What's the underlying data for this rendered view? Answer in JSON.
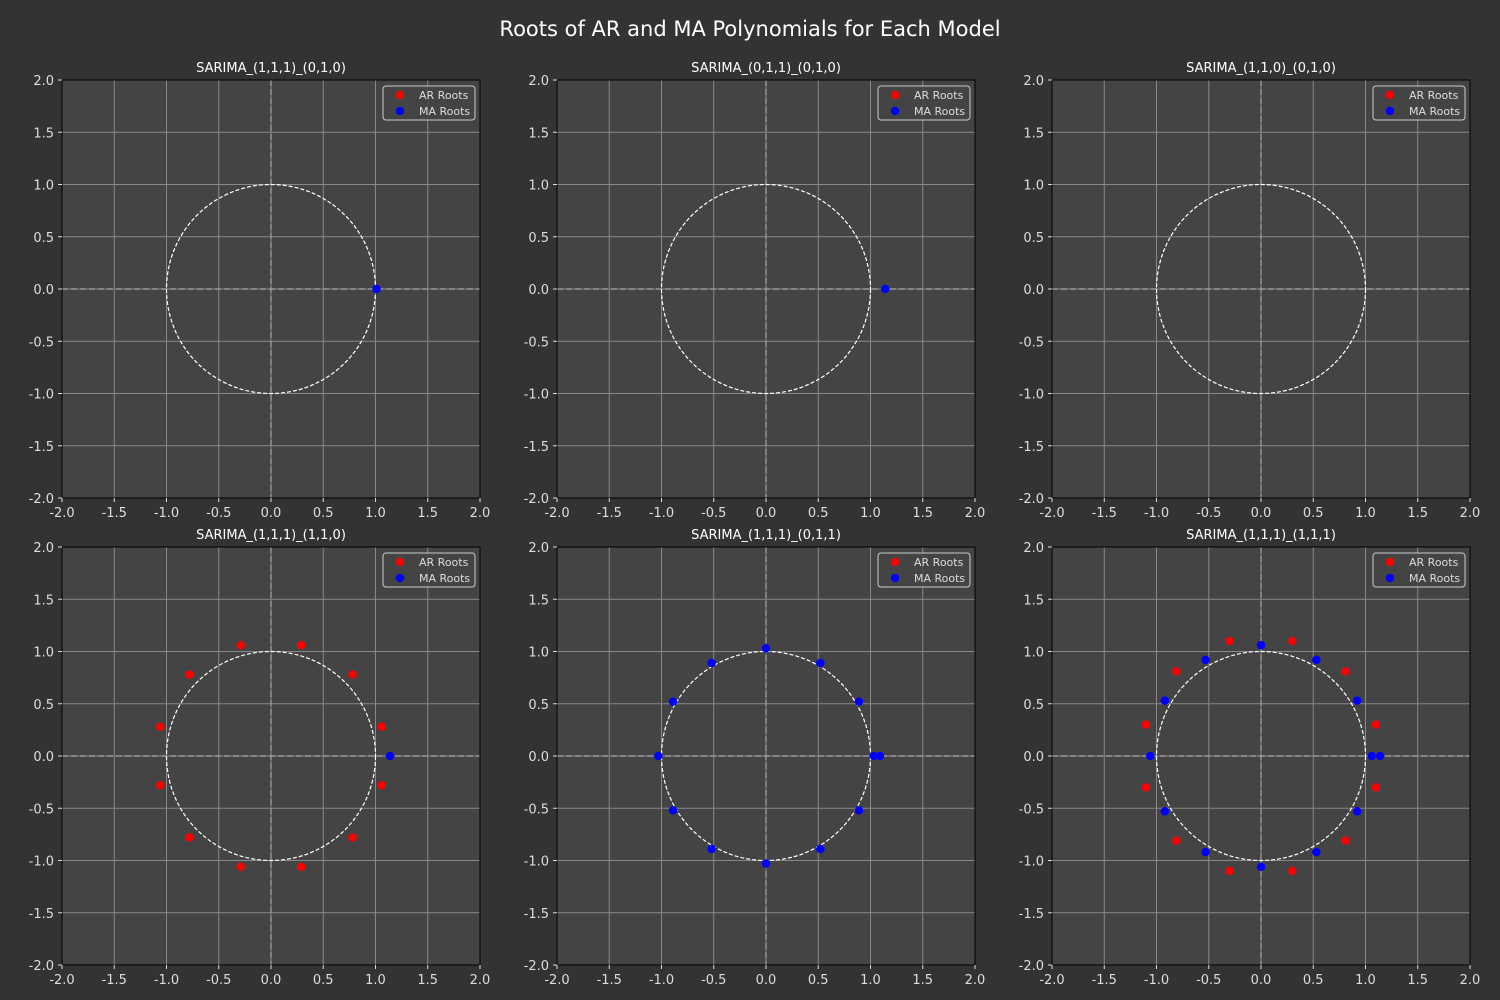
{
  "figure": {
    "title": "Roots of AR and MA Polynomials for Each Model",
    "background": "#333333",
    "axes_facecolor": "#444444",
    "grid_color": "#888888",
    "text_color": "#ffffff",
    "tick_color": "#dddddd",
    "circle_color": "#ffffff",
    "ar_color": "#ff0000",
    "ma_color": "#0000ff"
  },
  "chart_data": [
    {
      "type": "scatter",
      "title": "SARIMA_(1,1,1)_(0,1,0)",
      "xlim": [
        -2,
        2
      ],
      "ylim": [
        -2,
        2
      ],
      "xticks": [
        -2.0,
        -1.5,
        -1.0,
        -0.5,
        0.0,
        0.5,
        1.0,
        1.5,
        2.0
      ],
      "yticks": [
        -2.0,
        -1.5,
        -1.0,
        -0.5,
        0.0,
        0.5,
        1.0,
        1.5,
        2.0
      ],
      "grid": true,
      "unit_circle": true,
      "legend_position": "top-right",
      "series": [
        {
          "name": "AR Roots",
          "color": "#ff0000",
          "points": []
        },
        {
          "name": "MA Roots",
          "color": "#0000ff",
          "points": [
            [
              1.01,
              0.0
            ]
          ]
        }
      ]
    },
    {
      "type": "scatter",
      "title": "SARIMA_(0,1,1)_(0,1,0)",
      "xlim": [
        -2,
        2
      ],
      "ylim": [
        -2,
        2
      ],
      "xticks": [
        -2.0,
        -1.5,
        -1.0,
        -0.5,
        0.0,
        0.5,
        1.0,
        1.5,
        2.0
      ],
      "yticks": [
        -2.0,
        -1.5,
        -1.0,
        -0.5,
        0.0,
        0.5,
        1.0,
        1.5,
        2.0
      ],
      "grid": true,
      "unit_circle": true,
      "legend_position": "top-right",
      "series": [
        {
          "name": "AR Roots",
          "color": "#ff0000",
          "points": []
        },
        {
          "name": "MA Roots",
          "color": "#0000ff",
          "points": [
            [
              1.14,
              0.0
            ]
          ]
        }
      ]
    },
    {
      "type": "scatter",
      "title": "SARIMA_(1,1,0)_(0,1,0)",
      "xlim": [
        -2,
        2
      ],
      "ylim": [
        -2,
        2
      ],
      "xticks": [
        -2.0,
        -1.5,
        -1.0,
        -0.5,
        0.0,
        0.5,
        1.0,
        1.5,
        2.0
      ],
      "yticks": [
        -2.0,
        -1.5,
        -1.0,
        -0.5,
        0.0,
        0.5,
        1.0,
        1.5,
        2.0
      ],
      "grid": true,
      "unit_circle": true,
      "legend_position": "top-right",
      "series": [
        {
          "name": "AR Roots",
          "color": "#ff0000",
          "points": []
        },
        {
          "name": "MA Roots",
          "color": "#0000ff",
          "points": []
        }
      ]
    },
    {
      "type": "scatter",
      "title": "SARIMA_(1,1,1)_(1,1,0)",
      "xlim": [
        -2,
        2
      ],
      "ylim": [
        -2,
        2
      ],
      "xticks": [
        -2.0,
        -1.5,
        -1.0,
        -0.5,
        0.0,
        0.5,
        1.0,
        1.5,
        2.0
      ],
      "yticks": [
        -2.0,
        -1.5,
        -1.0,
        -0.5,
        0.0,
        0.5,
        1.0,
        1.5,
        2.0
      ],
      "grid": true,
      "unit_circle": true,
      "legend_position": "top-right",
      "series": [
        {
          "name": "AR Roots",
          "color": "#ff0000",
          "points": [
            [
              1.06,
              0.28
            ],
            [
              0.78,
              0.78
            ],
            [
              0.29,
              1.06
            ],
            [
              -0.29,
              1.06
            ],
            [
              -0.78,
              0.78
            ],
            [
              -1.06,
              0.28
            ],
            [
              -1.06,
              -0.28
            ],
            [
              -0.78,
              -0.78
            ],
            [
              -0.29,
              -1.06
            ],
            [
              0.29,
              -1.06
            ],
            [
              0.78,
              -0.78
            ],
            [
              1.06,
              -0.28
            ]
          ]
        },
        {
          "name": "MA Roots",
          "color": "#0000ff",
          "points": [
            [
              1.14,
              0.0
            ]
          ]
        }
      ]
    },
    {
      "type": "scatter",
      "title": "SARIMA_(1,1,1)_(0,1,1)",
      "xlim": [
        -2,
        2
      ],
      "ylim": [
        -2,
        2
      ],
      "xticks": [
        -2.0,
        -1.5,
        -1.0,
        -0.5,
        0.0,
        0.5,
        1.0,
        1.5,
        2.0
      ],
      "yticks": [
        -2.0,
        -1.5,
        -1.0,
        -0.5,
        0.0,
        0.5,
        1.0,
        1.5,
        2.0
      ],
      "grid": true,
      "unit_circle": true,
      "legend_position": "top-right",
      "series": [
        {
          "name": "AR Roots",
          "color": "#ff0000",
          "points": []
        },
        {
          "name": "MA Roots",
          "color": "#0000ff",
          "points": [
            [
              1.03,
              0.0
            ],
            [
              0.89,
              0.52
            ],
            [
              0.52,
              0.89
            ],
            [
              0.0,
              1.03
            ],
            [
              -0.52,
              0.89
            ],
            [
              -0.89,
              0.52
            ],
            [
              -1.03,
              0.0
            ],
            [
              -0.89,
              -0.52
            ],
            [
              -0.52,
              -0.89
            ],
            [
              0.0,
              -1.03
            ],
            [
              0.52,
              -0.89
            ],
            [
              0.89,
              -0.52
            ],
            [
              1.09,
              0.0
            ]
          ]
        }
      ]
    },
    {
      "type": "scatter",
      "title": "SARIMA_(1,1,1)_(1,1,1)",
      "xlim": [
        -2,
        2
      ],
      "ylim": [
        -2,
        2
      ],
      "xticks": [
        -2.0,
        -1.5,
        -1.0,
        -0.5,
        0.0,
        0.5,
        1.0,
        1.5,
        2.0
      ],
      "yticks": [
        -2.0,
        -1.5,
        -1.0,
        -0.5,
        0.0,
        0.5,
        1.0,
        1.5,
        2.0
      ],
      "grid": true,
      "unit_circle": true,
      "legend_position": "top-right",
      "series": [
        {
          "name": "AR Roots",
          "color": "#ff0000",
          "points": [
            [
              1.1,
              0.3
            ],
            [
              0.81,
              0.81
            ],
            [
              0.3,
              1.1
            ],
            [
              -0.3,
              1.1
            ],
            [
              -0.81,
              0.81
            ],
            [
              -1.1,
              0.3
            ],
            [
              -1.1,
              -0.3
            ],
            [
              -0.81,
              -0.81
            ],
            [
              -0.3,
              -1.1
            ],
            [
              0.3,
              -1.1
            ],
            [
              0.81,
              -0.81
            ],
            [
              1.1,
              -0.3
            ]
          ]
        },
        {
          "name": "MA Roots",
          "color": "#0000ff",
          "points": [
            [
              1.06,
              0.0
            ],
            [
              0.92,
              0.53
            ],
            [
              0.53,
              0.92
            ],
            [
              0.0,
              1.06
            ],
            [
              -0.53,
              0.92
            ],
            [
              -0.92,
              0.53
            ],
            [
              -1.06,
              0.0
            ],
            [
              -0.92,
              -0.53
            ],
            [
              -0.53,
              -0.92
            ],
            [
              0.0,
              -1.06
            ],
            [
              0.53,
              -0.92
            ],
            [
              0.92,
              -0.53
            ],
            [
              1.14,
              0.0
            ]
          ]
        }
      ]
    }
  ]
}
